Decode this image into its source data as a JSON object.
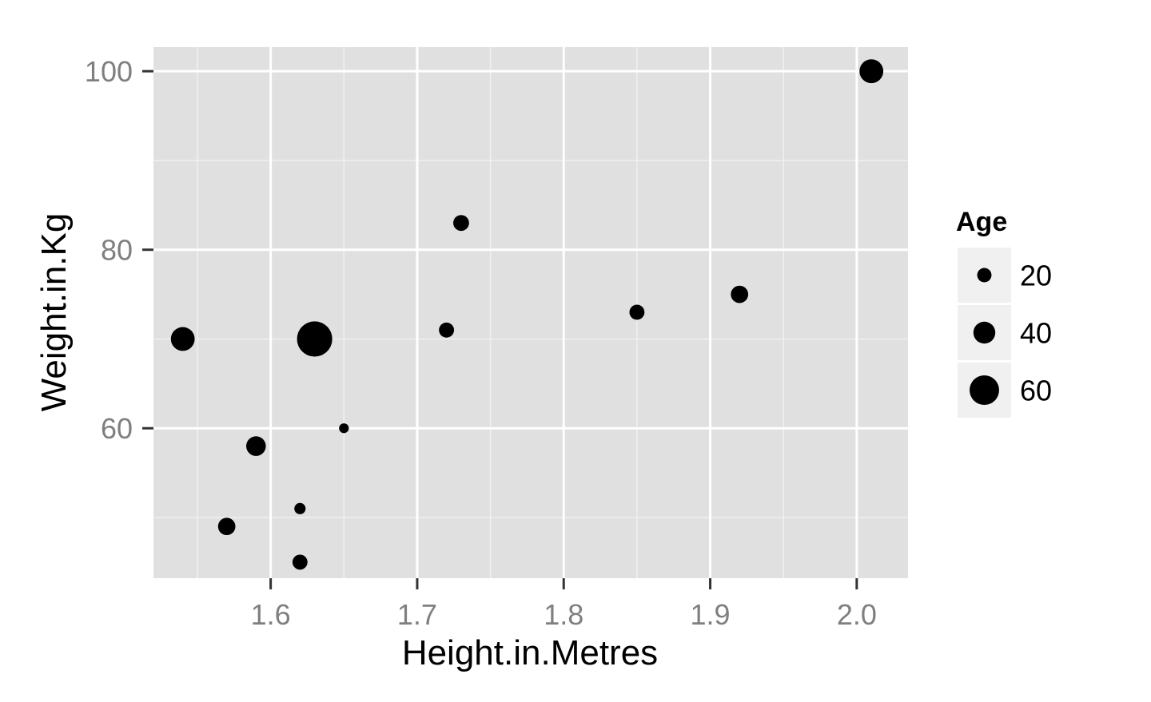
{
  "chart_data": {
    "type": "scatter",
    "xlabel": "Height.in.Metres",
    "ylabel": "Weight.in.Kg",
    "xlim": [
      1.52,
      2.035
    ],
    "ylim": [
      43.2,
      102.7
    ],
    "x_ticks": [
      1.6,
      1.7,
      1.8,
      1.9,
      2.0
    ],
    "x_tick_labels": [
      "1.6",
      "1.7",
      "1.8",
      "1.9",
      "2.0"
    ],
    "y_ticks": [
      60,
      80,
      100
    ],
    "y_tick_labels": [
      "60",
      "80",
      "100"
    ],
    "grid": true,
    "size_variable": "Age",
    "points": [
      {
        "x": 1.54,
        "y": 70,
        "size": 45
      },
      {
        "x": 1.57,
        "y": 49,
        "size": 28
      },
      {
        "x": 1.59,
        "y": 58,
        "size": 34
      },
      {
        "x": 1.62,
        "y": 51,
        "size": 12
      },
      {
        "x": 1.62,
        "y": 45,
        "size": 22
      },
      {
        "x": 1.63,
        "y": 70,
        "size": 75
      },
      {
        "x": 1.65,
        "y": 60,
        "size": 8
      },
      {
        "x": 1.72,
        "y": 71,
        "size": 22
      },
      {
        "x": 1.73,
        "y": 83,
        "size": 24
      },
      {
        "x": 1.85,
        "y": 73,
        "size": 22
      },
      {
        "x": 1.92,
        "y": 75,
        "size": 28
      },
      {
        "x": 2.01,
        "y": 100,
        "size": 45
      }
    ],
    "legend": {
      "title": "Age",
      "position": "right",
      "entries": [
        {
          "label": "20",
          "size": 20
        },
        {
          "label": "40",
          "size": 40
        },
        {
          "label": "60",
          "size": 60
        }
      ]
    },
    "colors": {
      "panel_background": "#e0e0e0",
      "grid_major": "#ffffff",
      "grid_minor": "#f0f0f0",
      "point": "#000000",
      "tick_label": "#7f7f7f",
      "legend_key_background": "#f0f0f0"
    }
  }
}
